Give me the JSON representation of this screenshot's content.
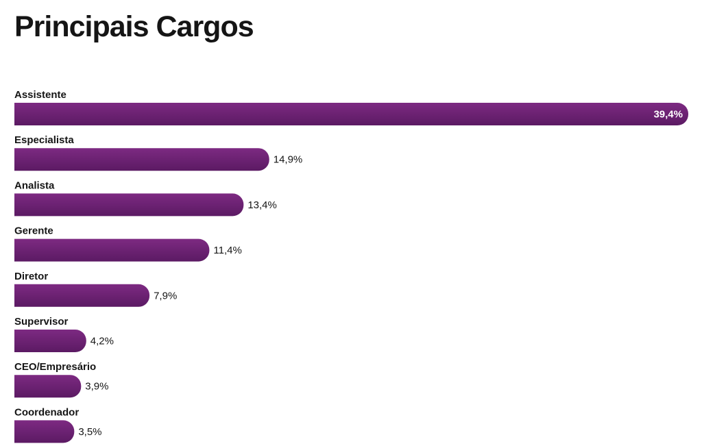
{
  "page": {
    "title": "Principais Cargos"
  },
  "colors": {
    "bar_top": "#7d2a82",
    "bar_bottom": "#5b1a63",
    "text": "#151515",
    "inside_label": "#ffffff"
  },
  "chart_data": {
    "type": "bar",
    "orientation": "horizontal",
    "title": "Principais Cargos",
    "categories": [
      "Assistente",
      "Especialista",
      "Analista",
      "Gerente",
      "Diretor",
      "Supervisor",
      "CEO/Empresário",
      "Coordenador"
    ],
    "values": [
      39.4,
      14.9,
      13.4,
      11.4,
      7.9,
      4.2,
      3.9,
      3.5
    ],
    "value_labels": [
      "39,4%",
      "14,9%",
      "13,4%",
      "11,4%",
      "7,9%",
      "4,2%",
      "3,9%",
      "3,5%"
    ],
    "unit": "%",
    "xlim": [
      0,
      39.4
    ],
    "grid": false,
    "legend": "none"
  }
}
